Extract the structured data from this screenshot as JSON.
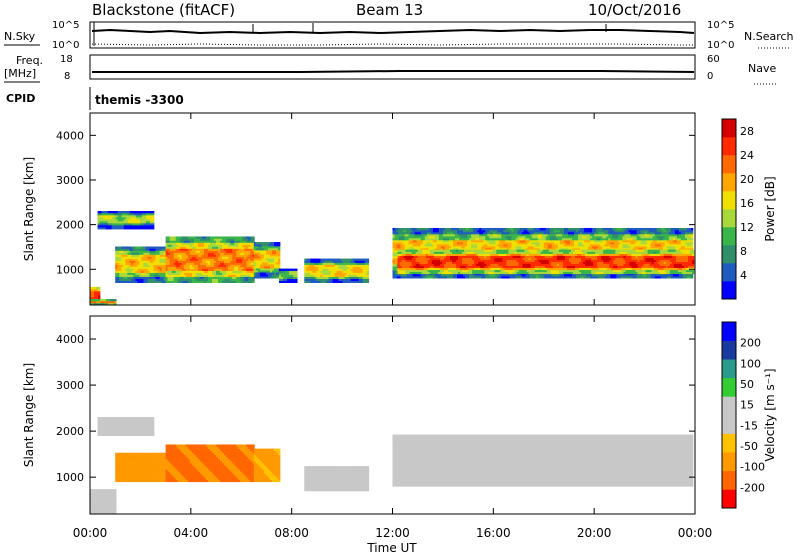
{
  "header": {
    "station": "Blackstone (fitACF)",
    "beam": "Beam 13",
    "date": "10/Oct/2016"
  },
  "top_panels": {
    "nsky": {
      "label": "N.Sky",
      "ticks": [
        "10^5",
        "10^0"
      ],
      "right_label": "N.Search",
      "right_ticks": [
        "10^5",
        "10^0"
      ]
    },
    "freq": {
      "label": "Freq.",
      "unit": "[MHz]",
      "ticks": [
        "18",
        "8"
      ],
      "right_label": "Nave",
      "right_ticks": [
        "60",
        "0"
      ]
    },
    "cpid": {
      "label": "CPID",
      "value": "themis -3300"
    }
  },
  "colors": {
    "power": [
      "#0000ff",
      "#1f5bbf",
      "#2f8f6a",
      "#39b54a",
      "#a8d83a",
      "#f0e000",
      "#ffa500",
      "#ff6a00",
      "#ff2a00",
      "#d40000"
    ],
    "velocity": [
      "#ff0000",
      "#ff6600",
      "#ff9900",
      "#ffc200",
      "#c8c8c8",
      "#c8c8c8",
      "#33cc33",
      "#2a9a8a",
      "#1a3aa0",
      "#0000ff"
    ],
    "ground_scatter": "#bbbbbb"
  },
  "chart_data": [
    {
      "type": "heatmap",
      "name": "power",
      "xlabel": "",
      "ylabel": "Slant Range [km]",
      "yticks": [
        "1000",
        "2000",
        "3000",
        "4000"
      ],
      "ylim": [
        200,
        4500
      ],
      "xlim": [
        0,
        24
      ],
      "colorbar": {
        "label": "Power [dB]",
        "ticks": [
          "4",
          "8",
          "12",
          "16",
          "20",
          "24",
          "28"
        ],
        "range": [
          0,
          30
        ]
      },
      "bands": [
        {
          "t0": 0.0,
          "t1": 0.35,
          "r0": 200,
          "r1": 600,
          "v": 26
        },
        {
          "t0": 0.3,
          "t1": 2.5,
          "r0": 1900,
          "r1": 2300,
          "v": 14
        },
        {
          "t0": 0.0,
          "t1": 1.0,
          "r0": 200,
          "r1": 300,
          "v": 24
        },
        {
          "t0": 1.0,
          "t1": 3.0,
          "r0": 700,
          "r1": 1500,
          "v": 18
        },
        {
          "t0": 3.0,
          "t1": 6.5,
          "r0": 700,
          "r1": 1700,
          "v": 22
        },
        {
          "t0": 6.5,
          "t1": 7.5,
          "r0": 800,
          "r1": 1600,
          "v": 18
        },
        {
          "t0": 7.5,
          "t1": 8.2,
          "r0": 700,
          "r1": 1000,
          "v": 10
        },
        {
          "t0": 8.5,
          "t1": 11.0,
          "r0": 700,
          "r1": 1200,
          "v": 17
        },
        {
          "t0": 12.0,
          "t1": 23.9,
          "r0": 800,
          "r1": 1900,
          "v": 18
        },
        {
          "t0": 12.2,
          "t1": 23.9,
          "r0": 900,
          "r1": 1400,
          "v": 26
        }
      ]
    },
    {
      "type": "heatmap",
      "name": "velocity",
      "xlabel": "Time UT",
      "ylabel": "Slant Range [km]",
      "xticks": [
        "00:00",
        "04:00",
        "08:00",
        "12:00",
        "16:00",
        "20:00",
        "00:00"
      ],
      "yticks": [
        "1000",
        "2000",
        "3000",
        "4000"
      ],
      "ylim": [
        200,
        4500
      ],
      "xlim": [
        0,
        24
      ],
      "colorbar": {
        "label": "Velocity [m s⁻¹]",
        "ticks": [
          "200",
          "100",
          "50",
          "15",
          "-15",
          "-50",
          "-100",
          "-200"
        ]
      },
      "bands": [
        {
          "t0": 0.3,
          "t1": 2.5,
          "r0": 1900,
          "r1": 2300,
          "v": 0
        },
        {
          "t0": 0.0,
          "t1": 1.0,
          "r0": 200,
          "r1": 700,
          "v": 0
        },
        {
          "t0": 1.0,
          "t1": 3.0,
          "r0": 900,
          "r1": 1500,
          "v": -60
        },
        {
          "t0": 3.0,
          "t1": 6.5,
          "r0": 900,
          "r1": 1700,
          "v": -80
        },
        {
          "t0": 6.5,
          "t1": 7.5,
          "r0": 900,
          "r1": 1600,
          "v": -40
        },
        {
          "t0": 8.5,
          "t1": 11.0,
          "r0": 700,
          "r1": 1200,
          "v": 0
        },
        {
          "t0": 12.0,
          "t1": 23.9,
          "r0": 800,
          "r1": 1900,
          "v": 0
        }
      ]
    }
  ]
}
